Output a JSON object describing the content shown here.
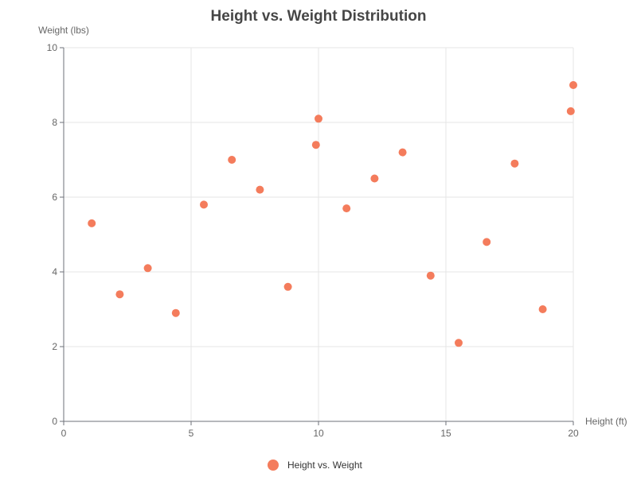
{
  "chart_data": {
    "type": "scatter",
    "title": "Height vs. Weight Distribution",
    "xlabel": "Height (ft)",
    "ylabel": "Weight (lbs)",
    "xlim": [
      0,
      20
    ],
    "ylim": [
      0,
      10
    ],
    "x_ticks": [
      0,
      5,
      10,
      15,
      20
    ],
    "y_ticks": [
      0,
      2,
      4,
      6,
      8,
      10
    ],
    "grid": true,
    "legend_position": "bottom",
    "series": [
      {
        "name": "Height vs. Weight",
        "color": "#f47c5c",
        "points": [
          {
            "x": 1.1,
            "y": 5.3
          },
          {
            "x": 2.2,
            "y": 3.4
          },
          {
            "x": 3.3,
            "y": 4.1
          },
          {
            "x": 4.4,
            "y": 2.9
          },
          {
            "x": 5.5,
            "y": 5.8
          },
          {
            "x": 6.6,
            "y": 7.0
          },
          {
            "x": 7.7,
            "y": 6.2
          },
          {
            "x": 8.8,
            "y": 3.6
          },
          {
            "x": 9.9,
            "y": 7.4
          },
          {
            "x": 10.0,
            "y": 8.1
          },
          {
            "x": 11.1,
            "y": 5.7
          },
          {
            "x": 12.2,
            "y": 6.5
          },
          {
            "x": 13.3,
            "y": 7.2
          },
          {
            "x": 14.4,
            "y": 3.9
          },
          {
            "x": 15.5,
            "y": 2.1
          },
          {
            "x": 16.6,
            "y": 4.8
          },
          {
            "x": 17.7,
            "y": 6.9
          },
          {
            "x": 18.8,
            "y": 3.0
          },
          {
            "x": 19.9,
            "y": 8.3
          },
          {
            "x": 20.0,
            "y": 9.0
          }
        ]
      }
    ]
  }
}
